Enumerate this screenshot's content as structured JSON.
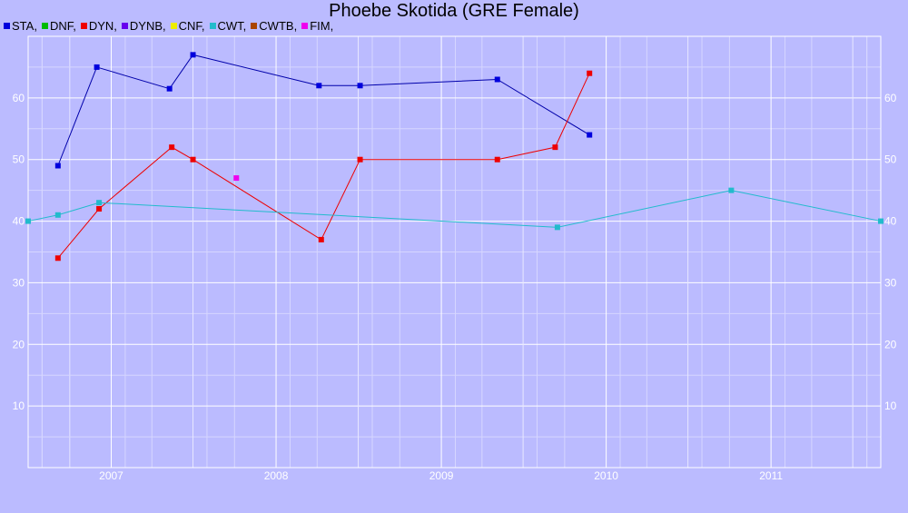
{
  "chart_data": {
    "type": "line",
    "title": "Phoebe Skotida (GRE Female)",
    "xlabel": "",
    "ylabel": "",
    "x_ticks": [
      "2007",
      "2008",
      "2009",
      "2010",
      "2011"
    ],
    "y_ticks": [
      10,
      20,
      30,
      40,
      50,
      60
    ],
    "xlim": [
      "2006-07-01",
      "2011-09-01"
    ],
    "ylim": [
      0,
      70
    ],
    "grid": true,
    "legend": {
      "position": "top-left",
      "entries": [
        {
          "label": "STA,",
          "color": "#0000dd"
        },
        {
          "label": "DNF,",
          "color": "#00bb00"
        },
        {
          "label": "DYN,",
          "color": "#ee0000"
        },
        {
          "label": "DYNB,",
          "color": "#6600ee"
        },
        {
          "label": "CNF,",
          "color": "#eeee00"
        },
        {
          "label": "CWT,",
          "color": "#22bbcc"
        },
        {
          "label": "CWTB,",
          "color": "#aa4400"
        },
        {
          "label": "FIM,",
          "color": "#ee00ee"
        }
      ]
    },
    "series": [
      {
        "name": "STA",
        "color": "#0000aa",
        "marker_color": "#0000dd",
        "points": [
          {
            "x": "2006-09-05",
            "y": 49
          },
          {
            "x": "2006-11-30",
            "y": 65
          },
          {
            "x": "2007-05-10",
            "y": 61.5
          },
          {
            "x": "2007-07-01",
            "y": 67
          },
          {
            "x": "2008-04-05",
            "y": 62
          },
          {
            "x": "2008-07-05",
            "y": 62
          },
          {
            "x": "2009-05-05",
            "y": 63
          },
          {
            "x": "2009-11-25",
            "y": 54
          }
        ]
      },
      {
        "name": "DYN",
        "color": "#ee0000",
        "marker_color": "#ee0000",
        "points": [
          {
            "x": "2006-09-05",
            "y": 34
          },
          {
            "x": "2006-12-05",
            "y": 42
          },
          {
            "x": "2007-05-15",
            "y": 52
          },
          {
            "x": "2007-07-01",
            "y": 50
          },
          {
            "x": "2008-04-10",
            "y": 37
          },
          {
            "x": "2008-07-05",
            "y": 50
          },
          {
            "x": "2009-05-05",
            "y": 50
          },
          {
            "x": "2009-09-10",
            "y": 52
          },
          {
            "x": "2009-11-25",
            "y": 64
          }
        ]
      },
      {
        "name": "CWT",
        "color": "#22bbcc",
        "marker_color": "#22bbcc",
        "points": [
          {
            "x": "2006-07-01",
            "y": 40
          },
          {
            "x": "2006-09-05",
            "y": 41
          },
          {
            "x": "2006-12-05",
            "y": 43
          },
          {
            "x": "2009-09-15",
            "y": 39
          },
          {
            "x": "2010-10-05",
            "y": 45
          },
          {
            "x": "2011-09-01",
            "y": 40
          }
        ]
      },
      {
        "name": "FIM",
        "color": "#ee00ee",
        "marker_color": "#ee00ee",
        "points": [
          {
            "x": "2007-10-05",
            "y": 47
          }
        ]
      }
    ]
  }
}
